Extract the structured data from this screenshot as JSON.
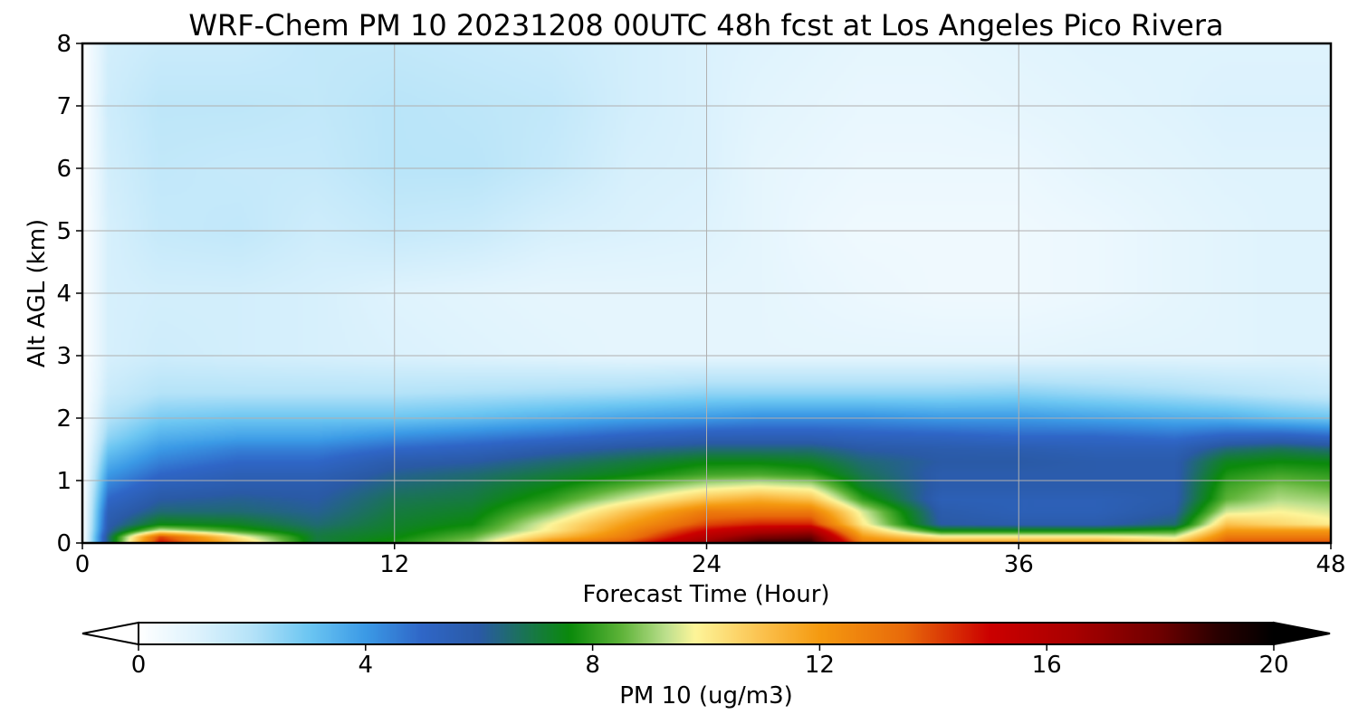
{
  "chart_data": {
    "type": "heatmap",
    "title": "WRF-Chem PM 10  20231208 00UTC 48h fcst at Los Angeles Pico Rivera",
    "xlabel": "Forecast Time (Hour)",
    "ylabel": "Alt AGL (km)",
    "xlim": [
      0,
      48
    ],
    "ylim": [
      0,
      8
    ],
    "xticks": [
      "0",
      "12",
      "24",
      "36",
      "48"
    ],
    "yticks": [
      "0",
      "1",
      "2",
      "3",
      "4",
      "5",
      "6",
      "7",
      "8"
    ],
    "grid": true,
    "colorbar": {
      "label": "PM 10  (ug/m3)",
      "range": [
        0,
        20
      ],
      "ticks": [
        "0",
        "4",
        "8",
        "12",
        "16",
        "20"
      ],
      "extend": "both",
      "stops": [
        {
          "v": 0,
          "c": "#ffffff"
        },
        {
          "v": 1,
          "c": "#dff3fd"
        },
        {
          "v": 2,
          "c": "#b5e3f8"
        },
        {
          "v": 3,
          "c": "#6cc6f2"
        },
        {
          "v": 4,
          "c": "#3b9ae6"
        },
        {
          "v": 5,
          "c": "#2f66c7"
        },
        {
          "v": 6,
          "c": "#2a5aa6"
        },
        {
          "v": 7,
          "c": "#167a40"
        },
        {
          "v": 7.6,
          "c": "#0b8a0b"
        },
        {
          "v": 8.5,
          "c": "#5db338"
        },
        {
          "v": 9.3,
          "c": "#bde08e"
        },
        {
          "v": 9.8,
          "c": "#fdf59a"
        },
        {
          "v": 11,
          "c": "#fbc14d"
        },
        {
          "v": 12,
          "c": "#f59a10"
        },
        {
          "v": 13.5,
          "c": "#e86a0a"
        },
        {
          "v": 15,
          "c": "#cc0000"
        },
        {
          "v": 16.5,
          "c": "#a80000"
        },
        {
          "v": 18,
          "c": "#6e0000"
        },
        {
          "v": 19,
          "c": "#2a0000"
        },
        {
          "v": 20,
          "c": "#000000"
        }
      ]
    },
    "heights_km": [
      0,
      0.1,
      0.2,
      0.3,
      0.5,
      0.7,
      0.9,
      1.1,
      1.3,
      1.5,
      1.7,
      2.0,
      2.4,
      3.0,
      4.0,
      5.0,
      6.0,
      7.0,
      8.0
    ],
    "hours": [
      0,
      1,
      3,
      6,
      9,
      12,
      15,
      18,
      21,
      24,
      26,
      28,
      30,
      33,
      36,
      39,
      42,
      44,
      46,
      48
    ],
    "values": [
      [
        0,
        6.5,
        15,
        11,
        7,
        7.8,
        9,
        12.5,
        14,
        17,
        19,
        19,
        13,
        12,
        12,
        12,
        11,
        14,
        14,
        14
      ],
      [
        0,
        6.5,
        14,
        10,
        7,
        7.5,
        8.5,
        11,
        13,
        16,
        17.5,
        18,
        12,
        10,
        10,
        10,
        9.5,
        13,
        13,
        13
      ],
      [
        0,
        6,
        9.5,
        8,
        6.8,
        7.3,
        8,
        10,
        12.5,
        15,
        16,
        16.5,
        11,
        7.5,
        7.5,
        7.5,
        8,
        12,
        12,
        12
      ],
      [
        0,
        5.8,
        7.5,
        7.3,
        6.5,
        7.2,
        7.6,
        9.8,
        12,
        14,
        14.5,
        14.5,
        10,
        6,
        5.8,
        5.8,
        6.5,
        11,
        10.5,
        10
      ],
      [
        0,
        5.5,
        6.5,
        6.5,
        6.2,
        7,
        7.3,
        8.8,
        11,
        13,
        13,
        13,
        9.5,
        5.8,
        5.5,
        5.5,
        6,
        9.5,
        9.8,
        9.5
      ],
      [
        0,
        5,
        6,
        6.2,
        6,
        6.8,
        7,
        8,
        9.5,
        11,
        11.5,
        11,
        8,
        5.5,
        5.5,
        5.5,
        5.8,
        8.5,
        9.2,
        9
      ],
      [
        0,
        4.5,
        5.5,
        5.8,
        5.8,
        6.5,
        6.8,
        7.5,
        8.5,
        9.5,
        9.8,
        9.5,
        7.2,
        5.8,
        5.8,
        5.8,
        5.8,
        8.2,
        8.8,
        8.5
      ],
      [
        0,
        4,
        5,
        5.5,
        5.5,
        6.2,
        6.5,
        7,
        7.5,
        8.2,
        8.3,
        8,
        6.8,
        5.8,
        5.8,
        5.8,
        5.8,
        7.8,
        8.2,
        8
      ],
      [
        0,
        3.5,
        4.5,
        5,
        5,
        5.8,
        6,
        6.5,
        7,
        7.5,
        7.5,
        7.3,
        6.5,
        6,
        6,
        5.8,
        5.8,
        7.4,
        7.6,
        7.5
      ],
      [
        0,
        3,
        4,
        4.5,
        4.5,
        5,
        5.3,
        5.8,
        6.2,
        6.5,
        6.5,
        6.5,
        6,
        5.8,
        5.7,
        5.5,
        5.5,
        6.5,
        6.8,
        6.5
      ],
      [
        0,
        2.5,
        3.5,
        3.8,
        3.8,
        4.2,
        4.5,
        4.8,
        5.2,
        5.5,
        5.5,
        5.5,
        5.3,
        5.2,
        5,
        5,
        4.8,
        5.2,
        5.3,
        5
      ],
      [
        0,
        2,
        2.8,
        3,
        3,
        3,
        3.2,
        3.5,
        3.8,
        4,
        4.2,
        4.2,
        4.2,
        4,
        4,
        3.8,
        3.6,
        3.5,
        3.2,
        3
      ],
      [
        0,
        1.5,
        2,
        2,
        2,
        2,
        2.1,
        2.2,
        2.3,
        2.5,
        2.5,
        2.5,
        2.5,
        2.5,
        2.6,
        2.4,
        2.2,
        2,
        1.8,
        1.6
      ],
      [
        0,
        1.2,
        1.4,
        1.3,
        1.2,
        1.1,
        1,
        0.9,
        0.8,
        0.8,
        0.8,
        0.8,
        0.8,
        0.8,
        0.8,
        0.9,
        0.9,
        0.9,
        1,
        1
      ],
      [
        0,
        1.2,
        1.3,
        1.3,
        1.2,
        1,
        0.9,
        0.8,
        0.8,
        0.8,
        0.8,
        0.7,
        0.6,
        0.5,
        0.5,
        0.6,
        0.8,
        0.9,
        1,
        1
      ],
      [
        0,
        1.2,
        1.6,
        1.7,
        1.4,
        1.6,
        1.5,
        1.2,
        1.1,
        1,
        0.8,
        0.6,
        0.5,
        0.5,
        0.5,
        0.6,
        0.8,
        0.9,
        1,
        1
      ],
      [
        0,
        1.3,
        1.7,
        1.6,
        1.6,
        1.9,
        1.9,
        1.6,
        1.2,
        1.1,
        0.8,
        0.7,
        0.6,
        0.6,
        0.6,
        0.8,
        0.9,
        1,
        1,
        1
      ],
      [
        0,
        1.4,
        1.8,
        1.8,
        1.7,
        1.9,
        1.8,
        1.7,
        1.3,
        1.1,
        0.9,
        0.8,
        0.7,
        0.7,
        0.8,
        0.9,
        1,
        1.1,
        1.1,
        1.1
      ],
      [
        0,
        1.3,
        1.5,
        1.5,
        1.7,
        1.7,
        1.6,
        1.5,
        1.3,
        1.1,
        1,
        0.9,
        0.8,
        0.8,
        0.9,
        1,
        1,
        1,
        1,
        1
      ]
    ]
  }
}
